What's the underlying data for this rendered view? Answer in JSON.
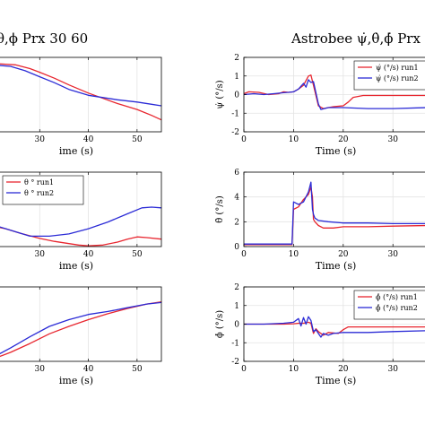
{
  "figure": {
    "left_title": "θ,ϕ Prx 30 60",
    "right_title": "Astrobee ψ̇,θ̇,ϕ̇ Prx"
  },
  "colors": {
    "run1": "#e8262f",
    "run2": "#2b2bd6",
    "grid": "#e3e3e3"
  },
  "chart_data": [
    {
      "id": "left-top",
      "type": "line",
      "xlabel": "ime (s)",
      "ylabel": "",
      "xlim": [
        20,
        55
      ],
      "ylim": [
        0,
        1
      ],
      "xticks": [
        30,
        40,
        50
      ],
      "yticks": [],
      "grid": true,
      "legend": null,
      "series": [
        {
          "key": "run1",
          "x": [
            20,
            25,
            28,
            30,
            33,
            36,
            40,
            43,
            46,
            50,
            53,
            55
          ],
          "y": [
            0.92,
            0.9,
            0.85,
            0.8,
            0.72,
            0.63,
            0.52,
            0.45,
            0.38,
            0.3,
            0.22,
            0.16
          ]
        },
        {
          "key": "run2",
          "x": [
            20,
            24,
            27,
            30,
            33,
            36,
            40,
            43,
            46,
            50,
            53,
            55
          ],
          "y": [
            0.9,
            0.88,
            0.82,
            0.74,
            0.66,
            0.57,
            0.49,
            0.46,
            0.43,
            0.4,
            0.37,
            0.35
          ]
        }
      ]
    },
    {
      "id": "left-mid",
      "type": "line",
      "xlabel": "ime (s)",
      "ylabel": "",
      "xlim": [
        20,
        55
      ],
      "ylim": [
        0,
        1
      ],
      "xticks": [
        30,
        40,
        50
      ],
      "yticks": [],
      "grid": true,
      "legend": "top-left",
      "series": [
        {
          "key": "run1",
          "name": "θ ° run1",
          "x": [
            20,
            23,
            26,
            30,
            33,
            36,
            38,
            40,
            43,
            46,
            48,
            50,
            52,
            55
          ],
          "y": [
            0.28,
            0.24,
            0.18,
            0.11,
            0.07,
            0.04,
            0.02,
            0.01,
            0.02,
            0.06,
            0.1,
            0.13,
            0.12,
            0.1
          ]
        },
        {
          "key": "run2",
          "name": "θ ° run2",
          "x": [
            20,
            24,
            28,
            32,
            36,
            40,
            44,
            48,
            51,
            53,
            55
          ],
          "y": [
            0.3,
            0.22,
            0.14,
            0.14,
            0.17,
            0.24,
            0.33,
            0.44,
            0.52,
            0.53,
            0.52
          ]
        }
      ]
    },
    {
      "id": "left-bot",
      "type": "line",
      "xlabel": "ime (s)",
      "ylabel": "",
      "xlim": [
        20,
        55
      ],
      "ylim": [
        0,
        1
      ],
      "xticks": [
        30,
        40,
        50
      ],
      "yticks": [],
      "grid": true,
      "legend": null,
      "series": [
        {
          "key": "run1",
          "x": [
            20,
            24,
            28,
            32,
            36,
            40,
            44,
            48,
            52,
            55
          ],
          "y": [
            0.02,
            0.12,
            0.24,
            0.37,
            0.47,
            0.56,
            0.64,
            0.71,
            0.77,
            0.8
          ]
        },
        {
          "key": "run2",
          "x": [
            20,
            24,
            28,
            32,
            36,
            40,
            44,
            48,
            52,
            55
          ],
          "y": [
            0.04,
            0.18,
            0.33,
            0.47,
            0.56,
            0.63,
            0.67,
            0.72,
            0.77,
            0.79
          ]
        }
      ]
    },
    {
      "id": "psi-dot",
      "type": "line",
      "xlabel": "Time (s)",
      "ylabel": "ψ̇ (°/s)",
      "xlim": [
        0,
        37
      ],
      "ylim": [
        -2,
        2
      ],
      "xticks": [
        0,
        10,
        20,
        30
      ],
      "yticks": [
        -2,
        -1,
        0,
        1,
        2
      ],
      "grid": true,
      "legend": "top-right",
      "series": [
        {
          "key": "run1",
          "name": "ψ̇ (°/s) run1",
          "x": [
            0,
            1,
            3,
            5,
            7,
            8,
            9,
            10,
            11,
            12,
            13,
            13.5,
            14,
            15,
            16,
            17,
            18,
            20,
            21,
            22,
            24,
            30,
            37
          ],
          "y": [
            0.05,
            0.15,
            0.12,
            0.0,
            0.05,
            0.15,
            0.12,
            0.15,
            0.3,
            0.5,
            1.0,
            1.05,
            0.5,
            -0.6,
            -0.75,
            -0.7,
            -0.65,
            -0.6,
            -0.4,
            -0.15,
            -0.05,
            -0.05,
            -0.05
          ]
        },
        {
          "key": "run2",
          "name": "ψ̇ (°/s) run2",
          "x": [
            0,
            2,
            4,
            6,
            8,
            9,
            10,
            11,
            12,
            12.5,
            13,
            13.5,
            14,
            15,
            15.5,
            17,
            20,
            25,
            30,
            37
          ],
          "y": [
            0.0,
            0.05,
            0.0,
            0.05,
            0.1,
            0.12,
            0.15,
            0.3,
            0.6,
            0.4,
            0.8,
            0.65,
            0.7,
            -0.5,
            -0.8,
            -0.7,
            -0.7,
            -0.75,
            -0.75,
            -0.7
          ]
        }
      ]
    },
    {
      "id": "theta-dot",
      "type": "line",
      "xlabel": "Time (s)",
      "ylabel": "θ̇ (°/s)",
      "xlim": [
        0,
        37
      ],
      "ylim": [
        0,
        6
      ],
      "xticks": [
        0,
        10,
        20,
        30
      ],
      "yticks": [
        0,
        2,
        4,
        6
      ],
      "grid": true,
      "legend": null,
      "series": [
        {
          "key": "run1",
          "x": [
            0,
            5,
            9.7,
            10,
            11,
            12,
            13,
            13.5,
            13.8,
            14,
            14.3,
            15,
            16,
            18,
            20,
            25,
            30,
            37
          ],
          "y": [
            0.15,
            0.15,
            0.15,
            3.0,
            3.2,
            3.8,
            4.2,
            4.8,
            4.0,
            2.2,
            2.0,
            1.7,
            1.5,
            1.5,
            1.6,
            1.6,
            1.65,
            1.7
          ]
        },
        {
          "key": "run2",
          "x": [
            0,
            5,
            9.7,
            10,
            11,
            12,
            13,
            13.5,
            13.8,
            14,
            14.3,
            15,
            17,
            20,
            25,
            30,
            37
          ],
          "y": [
            0.2,
            0.2,
            0.2,
            3.6,
            3.4,
            3.6,
            4.4,
            5.2,
            3.0,
            2.6,
            2.3,
            2.1,
            2.0,
            1.9,
            1.9,
            1.85,
            1.85
          ]
        }
      ]
    },
    {
      "id": "phi-dot",
      "type": "line",
      "xlabel": "Time (s)",
      "ylabel": "ϕ̇ (°/s)",
      "xlim": [
        0,
        37
      ],
      "ylim": [
        -2,
        2
      ],
      "xticks": [
        0,
        10,
        20,
        30
      ],
      "yticks": [
        -2,
        -1,
        0,
        1,
        2
      ],
      "grid": true,
      "legend": "top-right",
      "series": [
        {
          "key": "run1",
          "name": "ϕ̇ (°/s) run1",
          "x": [
            0,
            4,
            8,
            10,
            11,
            12,
            13,
            13.5,
            14,
            14.5,
            15,
            16,
            17,
            19,
            20,
            21,
            22,
            24,
            30,
            37
          ],
          "y": [
            0.0,
            0.0,
            0.0,
            0.02,
            0.05,
            0.05,
            0.1,
            0.05,
            -0.5,
            -0.25,
            -0.4,
            -0.6,
            -0.45,
            -0.5,
            -0.3,
            -0.15,
            -0.15,
            -0.15,
            -0.15,
            -0.15
          ]
        },
        {
          "key": "run2",
          "name": "ϕ̇ (°/s) run2",
          "x": [
            0,
            4,
            8,
            10,
            11,
            11.5,
            12,
            12.5,
            13,
            13.5,
            14,
            14.5,
            15,
            15.5,
            16,
            17,
            18,
            20,
            25,
            30,
            37
          ],
          "y": [
            0.0,
            0.0,
            0.05,
            0.1,
            0.3,
            -0.1,
            0.35,
            0.0,
            0.4,
            0.2,
            -0.4,
            -0.3,
            -0.5,
            -0.7,
            -0.5,
            -0.6,
            -0.5,
            -0.45,
            -0.45,
            -0.4,
            -0.35
          ]
        }
      ]
    }
  ]
}
